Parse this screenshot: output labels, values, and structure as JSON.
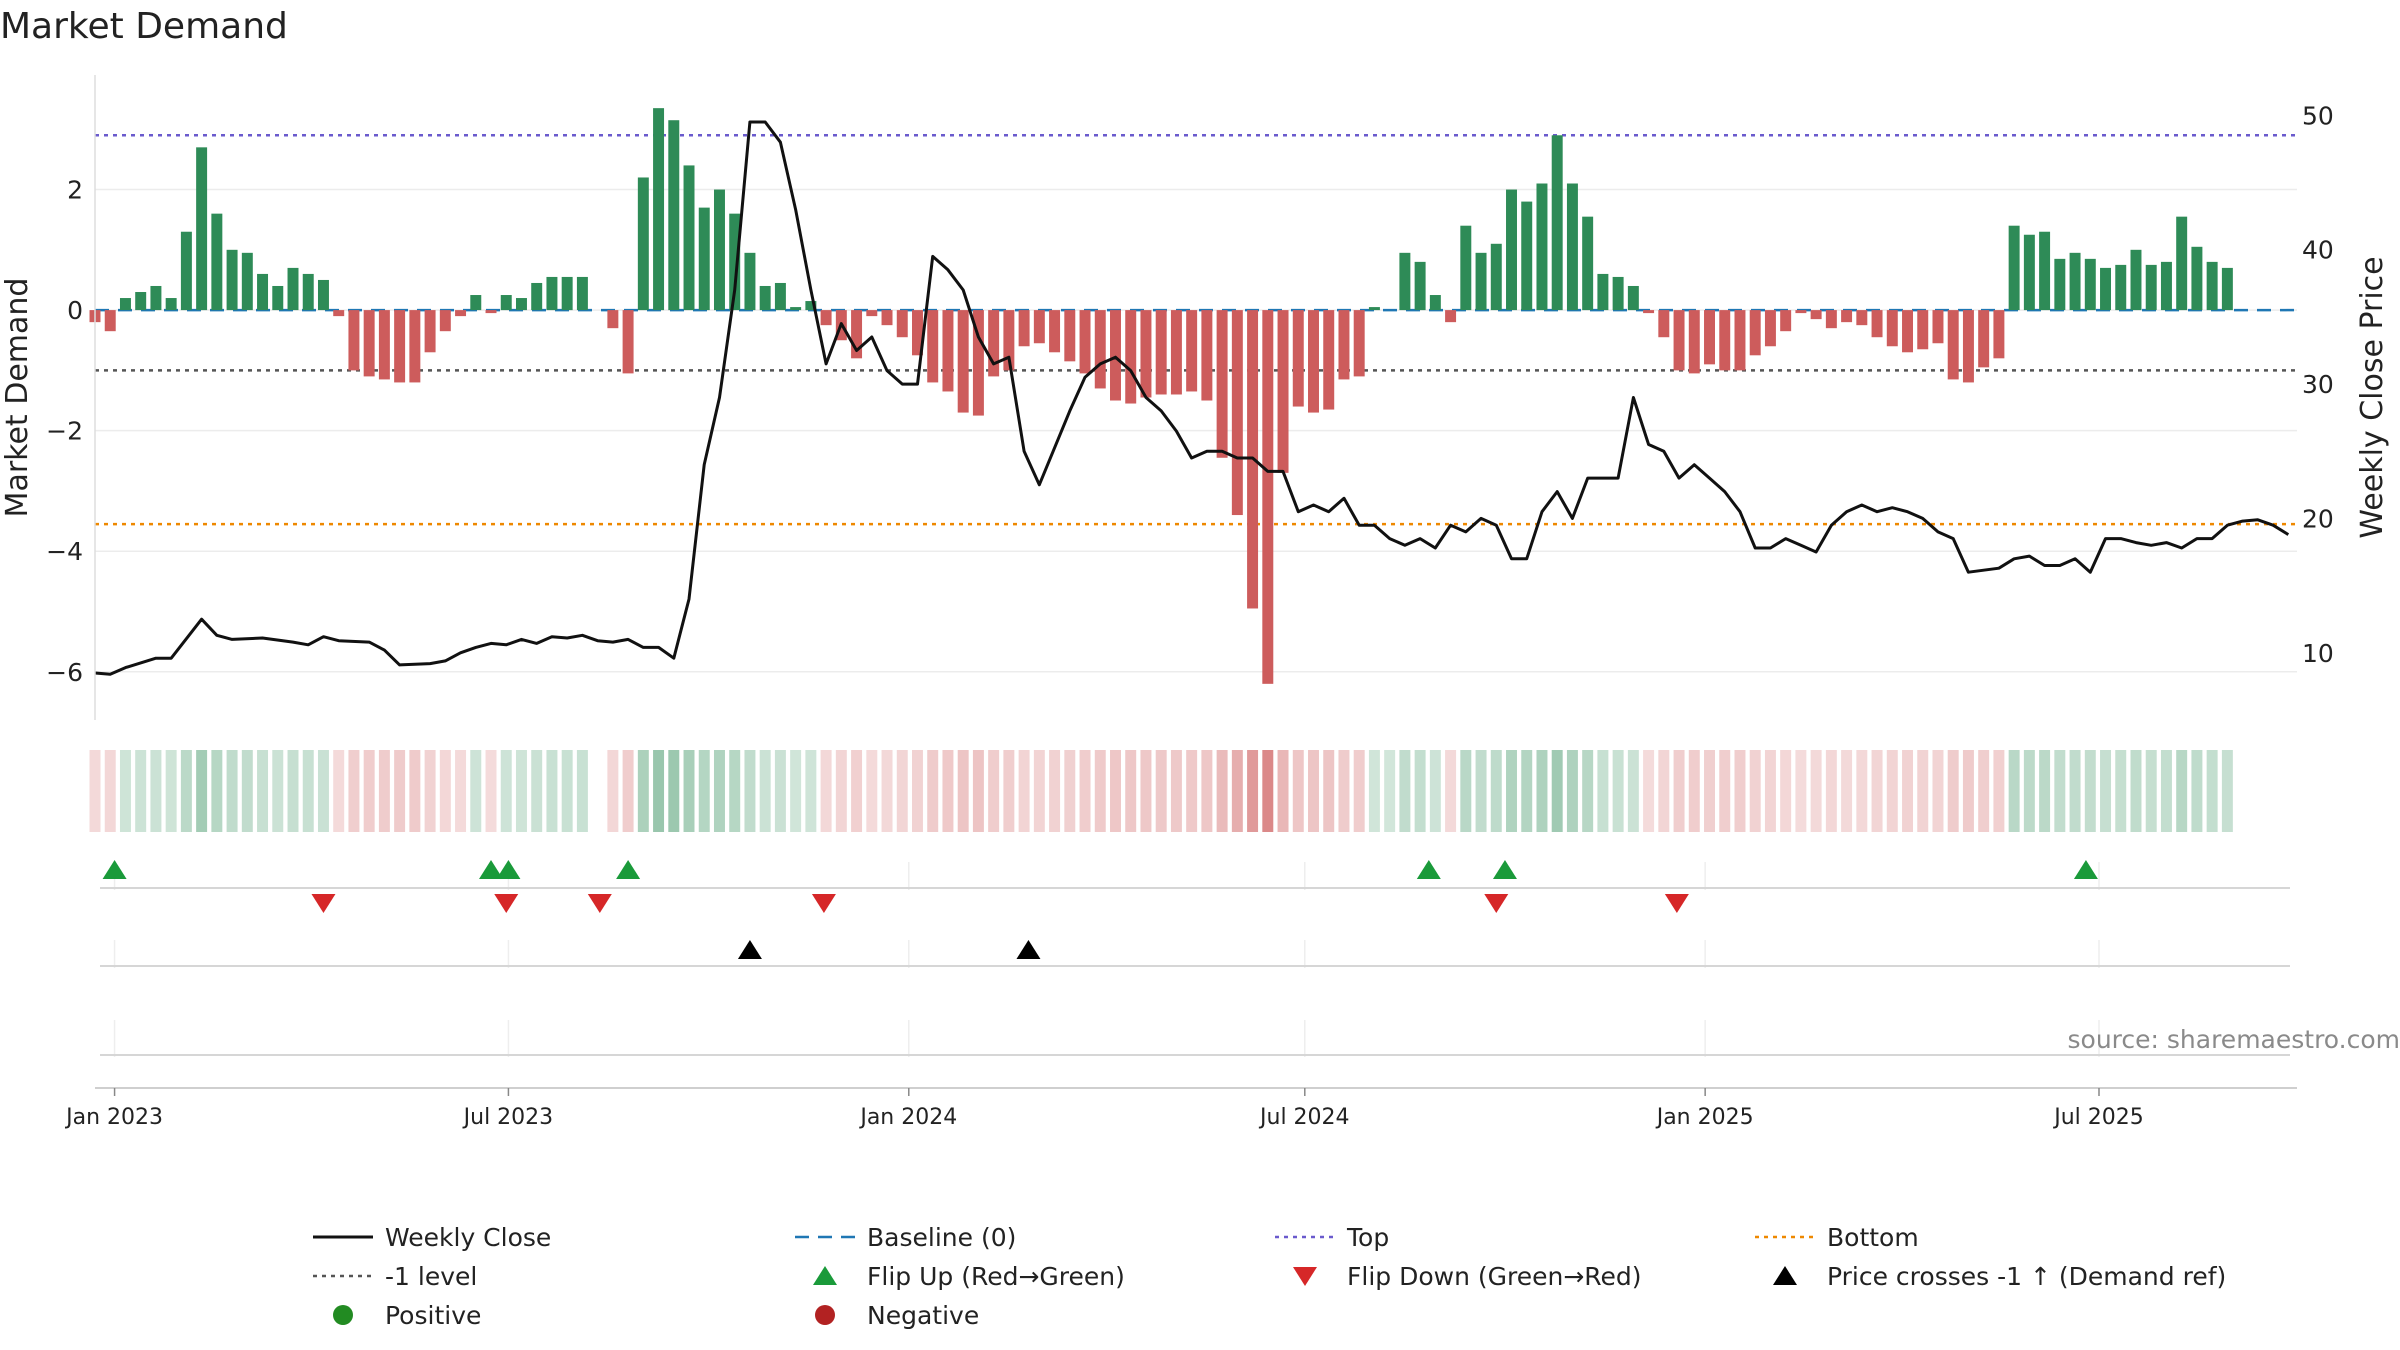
{
  "title": "Market Demand",
  "source_text": "source: sharemaestro.com",
  "colors": {
    "positive_bar": "#2e8b57",
    "negative_bar": "#cd5c5c",
    "price_line": "#111111",
    "baseline": "#1f77b4",
    "top": "#6a5acd",
    "minus1": "#555555",
    "bottom": "#ee8800",
    "flip_up": "#1a9a3a",
    "flip_down": "#d62728",
    "cross": "#000000",
    "positive_dot": "#228b22",
    "negative_dot": "#b22222"
  },
  "chart_data": {
    "type": "bar+line",
    "title": "Market Demand",
    "ylabel_left": "Market Demand",
    "ylabel_right": "Weekly Close Price",
    "ylim_left": [
      -6.8,
      3.9
    ],
    "ylim_right": [
      5,
      53
    ],
    "yticks_left": [
      -6,
      -4,
      -2,
      0,
      2
    ],
    "yticks_right": [
      10,
      20,
      30,
      40,
      50
    ],
    "x_start": "2022-12-23",
    "x_end": "2025-08-31",
    "xticks": [
      {
        "date": "2023-01-01",
        "label": "Jan 2023"
      },
      {
        "date": "2023-07-01",
        "label": "Jul 2023"
      },
      {
        "date": "2024-01-01",
        "label": "Jan 2024"
      },
      {
        "date": "2024-07-01",
        "label": "Jul 2024"
      },
      {
        "date": "2025-01-01",
        "label": "Jan 2025"
      },
      {
        "date": "2025-07-01",
        "label": "Jul 2025"
      }
    ],
    "reference_lines": {
      "baseline": 0,
      "top": 2.9,
      "minus1": -1.0,
      "bottom": -3.55
    },
    "demand_start": "2022-12-23",
    "demand_step_days": 7,
    "demand": [
      -0.2,
      -0.35,
      0.2,
      0.3,
      0.4,
      0.2,
      1.3,
      2.7,
      1.6,
      1.0,
      0.95,
      0.6,
      0.4,
      0.7,
      0.6,
      0.5,
      -0.1,
      -1.0,
      -1.1,
      -1.15,
      -1.2,
      -1.2,
      -0.7,
      -0.35,
      -0.1,
      0.25,
      -0.05,
      0.25,
      0.2,
      0.45,
      0.55,
      0.55,
      0.55,
      null,
      -0.3,
      -1.05,
      2.2,
      3.35,
      3.15,
      2.4,
      1.7,
      2.0,
      1.6,
      0.95,
      0.4,
      0.45,
      0.05,
      0.15,
      -0.25,
      -0.5,
      -0.8,
      -0.1,
      -0.25,
      -0.45,
      -0.75,
      -1.2,
      -1.35,
      -1.7,
      -1.75,
      -1.1,
      -1.0,
      -0.6,
      -0.55,
      -0.7,
      -0.85,
      -1.05,
      -1.3,
      -1.5,
      -1.55,
      -1.45,
      -1.4,
      -1.4,
      -1.35,
      -1.5,
      -2.45,
      -3.4,
      -4.95,
      -6.2,
      -2.7,
      -1.6,
      -1.7,
      -1.65,
      -1.15,
      -1.1,
      0.05,
      0.0,
      0.95,
      0.8,
      0.25,
      -0.2,
      1.4,
      0.95,
      1.1,
      2.0,
      1.8,
      2.1,
      2.9,
      2.1,
      1.55,
      0.6,
      0.55,
      0.4,
      -0.05,
      -0.45,
      -1.0,
      -1.05,
      -0.9,
      -1.0,
      -1.0,
      -0.75,
      -0.6,
      -0.35,
      -0.05,
      -0.15,
      -0.3,
      -0.2,
      -0.25,
      -0.45,
      -0.6,
      -0.7,
      -0.65,
      -0.55,
      -1.15,
      -1.2,
      -0.95,
      -0.8,
      1.4,
      1.25,
      1.3,
      0.85,
      0.95,
      0.85,
      0.7,
      0.75,
      1.0,
      0.75,
      0.8,
      1.55,
      1.05,
      0.8,
      0.7
    ],
    "price_series": [
      [
        "2022-12-23",
        8.5
      ],
      [
        "2022-12-30",
        8.4
      ],
      [
        "2023-01-06",
        8.9
      ],
      [
        "2023-01-20",
        9.6
      ],
      [
        "2023-01-27",
        9.6
      ],
      [
        "2023-02-10",
        12.5
      ],
      [
        "2023-02-17",
        11.3
      ],
      [
        "2023-02-24",
        11.0
      ],
      [
        "2023-03-10",
        11.1
      ],
      [
        "2023-03-24",
        10.8
      ],
      [
        "2023-03-31",
        10.6
      ],
      [
        "2023-04-07",
        11.2
      ],
      [
        "2023-04-14",
        10.9
      ],
      [
        "2023-04-28",
        10.8
      ],
      [
        "2023-05-05",
        10.2
      ],
      [
        "2023-05-12",
        9.1
      ],
      [
        "2023-05-26",
        9.2
      ],
      [
        "2023-06-02",
        9.4
      ],
      [
        "2023-06-09",
        10.0
      ],
      [
        "2023-06-16",
        10.4
      ],
      [
        "2023-06-23",
        10.7
      ],
      [
        "2023-06-30",
        10.6
      ],
      [
        "2023-07-07",
        11.0
      ],
      [
        "2023-07-14",
        10.7
      ],
      [
        "2023-07-21",
        11.2
      ],
      [
        "2023-07-28",
        11.1
      ],
      [
        "2023-08-04",
        11.3
      ],
      [
        "2023-08-11",
        10.9
      ],
      [
        "2023-08-18",
        10.8
      ],
      [
        "2023-08-25",
        11.0
      ],
      [
        "2023-09-01",
        10.4
      ],
      [
        "2023-09-08",
        10.4
      ],
      [
        "2023-09-15",
        9.6
      ],
      [
        "2023-09-22",
        14.0
      ],
      [
        "2023-09-29",
        24.0
      ],
      [
        "2023-10-06",
        29.0
      ],
      [
        "2023-10-13",
        37.0
      ],
      [
        "2023-10-20",
        49.5
      ],
      [
        "2023-10-27",
        49.5
      ],
      [
        "2023-11-03",
        48.0
      ],
      [
        "2023-11-10",
        43.0
      ],
      [
        "2023-11-17",
        37.0
      ],
      [
        "2023-11-24",
        31.5
      ],
      [
        "2023-12-01",
        34.5
      ],
      [
        "2023-12-08",
        32.5
      ],
      [
        "2023-12-15",
        33.5
      ],
      [
        "2023-12-22",
        31.0
      ],
      [
        "2023-12-29",
        30.0
      ],
      [
        "2024-01-05",
        30.0
      ],
      [
        "2024-01-12",
        39.5
      ],
      [
        "2024-01-19",
        38.5
      ],
      [
        "2024-01-26",
        37.0
      ],
      [
        "2024-02-02",
        33.5
      ],
      [
        "2024-02-09",
        31.5
      ],
      [
        "2024-02-16",
        32.0
      ],
      [
        "2024-02-23",
        25.0
      ],
      [
        "2024-03-01",
        22.5
      ],
      [
        "2024-03-15",
        28.0
      ],
      [
        "2024-03-22",
        30.5
      ],
      [
        "2024-03-29",
        31.5
      ],
      [
        "2024-04-05",
        32.0
      ],
      [
        "2024-04-12",
        31.0
      ],
      [
        "2024-04-19",
        29.0
      ],
      [
        "2024-04-26",
        28.0
      ],
      [
        "2024-05-03",
        26.5
      ],
      [
        "2024-05-10",
        24.5
      ],
      [
        "2024-05-17",
        25.0
      ],
      [
        "2024-05-24",
        25.0
      ],
      [
        "2024-05-31",
        24.5
      ],
      [
        "2024-06-07",
        24.5
      ],
      [
        "2024-06-14",
        23.5
      ],
      [
        "2024-06-21",
        23.5
      ],
      [
        "2024-06-28",
        20.5
      ],
      [
        "2024-07-05",
        21.0
      ],
      [
        "2024-07-12",
        20.5
      ],
      [
        "2024-07-19",
        21.5
      ],
      [
        "2024-07-26",
        19.5
      ],
      [
        "2024-08-02",
        19.5
      ],
      [
        "2024-08-09",
        18.5
      ],
      [
        "2024-08-16",
        18.0
      ],
      [
        "2024-08-23",
        18.5
      ],
      [
        "2024-08-30",
        17.8
      ],
      [
        "2024-09-06",
        19.5
      ],
      [
        "2024-09-13",
        19.0
      ],
      [
        "2024-09-20",
        20.0
      ],
      [
        "2024-09-27",
        19.5
      ],
      [
        "2024-10-04",
        17.0
      ],
      [
        "2024-10-11",
        17.0
      ],
      [
        "2024-10-18",
        20.5
      ],
      [
        "2024-10-25",
        22.0
      ],
      [
        "2024-11-01",
        20.0
      ],
      [
        "2024-11-08",
        23.0
      ],
      [
        "2024-11-15",
        23.0
      ],
      [
        "2024-11-22",
        23.0
      ],
      [
        "2024-11-29",
        29.0
      ],
      [
        "2024-12-06",
        25.5
      ],
      [
        "2024-12-13",
        25.0
      ],
      [
        "2024-12-20",
        23.0
      ],
      [
        "2024-12-27",
        24.0
      ],
      [
        "2025-01-03",
        23.0
      ],
      [
        "2025-01-10",
        22.0
      ],
      [
        "2025-01-17",
        20.5
      ],
      [
        "2025-01-24",
        17.8
      ],
      [
        "2025-01-31",
        17.8
      ],
      [
        "2025-02-07",
        18.5
      ],
      [
        "2025-02-14",
        18.0
      ],
      [
        "2025-02-21",
        17.5
      ],
      [
        "2025-02-28",
        19.5
      ],
      [
        "2025-03-07",
        20.5
      ],
      [
        "2025-03-14",
        21.0
      ],
      [
        "2025-03-21",
        20.5
      ],
      [
        "2025-03-28",
        20.8
      ],
      [
        "2025-04-04",
        20.5
      ],
      [
        "2025-04-11",
        20.0
      ],
      [
        "2025-04-18",
        19.0
      ],
      [
        "2025-04-25",
        18.5
      ],
      [
        "2025-05-02",
        16.0
      ],
      [
        "2025-05-16",
        16.3
      ],
      [
        "2025-05-23",
        17.0
      ],
      [
        "2025-05-30",
        17.2
      ],
      [
        "2025-06-06",
        16.5
      ],
      [
        "2025-06-13",
        16.5
      ],
      [
        "2025-06-20",
        17.0
      ],
      [
        "2025-06-27",
        16.0
      ],
      [
        "2025-07-04",
        18.5
      ],
      [
        "2025-07-11",
        18.5
      ],
      [
        "2025-07-18",
        18.2
      ],
      [
        "2025-07-25",
        18.0
      ],
      [
        "2025-08-01",
        18.2
      ],
      [
        "2025-08-08",
        17.8
      ],
      [
        "2025-08-15",
        18.5
      ],
      [
        "2025-08-22",
        18.5
      ],
      [
        "2025-08-29",
        19.5
      ],
      [
        "2025-09-05",
        19.8
      ],
      [
        "2025-09-12",
        19.9
      ],
      [
        "2025-09-19",
        19.5
      ],
      [
        "2025-09-26",
        18.8
      ]
    ],
    "flip_up_dates": [
      "2023-01-01",
      "2023-06-23",
      "2023-07-01",
      "2023-08-25",
      "2024-08-27",
      "2024-10-01",
      "2025-06-25"
    ],
    "flip_down_dates": [
      "2023-04-07",
      "2023-06-30",
      "2023-08-12",
      "2023-11-23",
      "2024-09-27",
      "2024-12-19"
    ],
    "cross_dates": [
      "2023-10-20",
      "2024-02-25"
    ],
    "x_end_actual": "2025-09-30"
  },
  "legend": [
    {
      "key": "weekly_close",
      "label": "Weekly Close",
      "symbol": "line"
    },
    {
      "key": "baseline",
      "label": "Baseline (0)",
      "symbol": "dash"
    },
    {
      "key": "top",
      "label": "Top",
      "symbol": "dot"
    },
    {
      "key": "bottom",
      "label": "Bottom",
      "symbol": "dot"
    },
    {
      "key": "minus1",
      "label": "-1 level",
      "symbol": "dot"
    },
    {
      "key": "flip_up",
      "label": "Flip Up (Red→Green)",
      "symbol": "triangle-up"
    },
    {
      "key": "flip_down",
      "label": "Flip Down (Green→Red)",
      "symbol": "triangle-down"
    },
    {
      "key": "cross",
      "label": "Price crosses -1 ↑ (Demand ref)",
      "symbol": "triangle-up"
    },
    {
      "key": "positive",
      "label": "Positive",
      "symbol": "circle"
    },
    {
      "key": "negative",
      "label": "Negative",
      "symbol": "circle"
    }
  ]
}
